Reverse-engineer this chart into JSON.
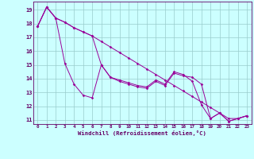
{
  "xlabel": "Windchill (Refroidissement éolien,°C)",
  "x": [
    0,
    1,
    2,
    3,
    4,
    5,
    6,
    7,
    8,
    9,
    10,
    11,
    12,
    13,
    14,
    15,
    16,
    17,
    18,
    19,
    20,
    21,
    22,
    23
  ],
  "line1": [
    17.8,
    19.2,
    18.4,
    18.1,
    17.7,
    17.4,
    17.1,
    15.0,
    14.1,
    13.8,
    13.6,
    13.4,
    13.3,
    13.8,
    13.5,
    14.4,
    14.2,
    14.1,
    13.6,
    11.1,
    11.5,
    10.9,
    11.1,
    11.3
  ],
  "line2": [
    17.8,
    19.2,
    18.4,
    15.1,
    13.6,
    12.8,
    12.6,
    15.0,
    14.1,
    13.9,
    13.7,
    13.5,
    13.4,
    13.9,
    13.6,
    14.5,
    14.3,
    13.8,
    12.1,
    11.1,
    11.5,
    10.9,
    11.1,
    11.3
  ],
  "line3": [
    17.8,
    19.2,
    18.4,
    18.1,
    17.7,
    17.4,
    17.1,
    16.7,
    16.3,
    15.9,
    15.5,
    15.1,
    14.7,
    14.3,
    13.9,
    13.5,
    13.1,
    12.7,
    12.3,
    11.9,
    11.5,
    11.1,
    11.1,
    11.3
  ],
  "line_color": "#990099",
  "bg_color": "#ccffff",
  "grid_color": "#99cccc",
  "tick_color": "#660066",
  "ylim": [
    10.7,
    19.6
  ],
  "yticks": [
    11,
    12,
    13,
    14,
    15,
    16,
    17,
    18,
    19
  ],
  "marker": "D",
  "markersize": 1.8,
  "linewidth": 0.7
}
